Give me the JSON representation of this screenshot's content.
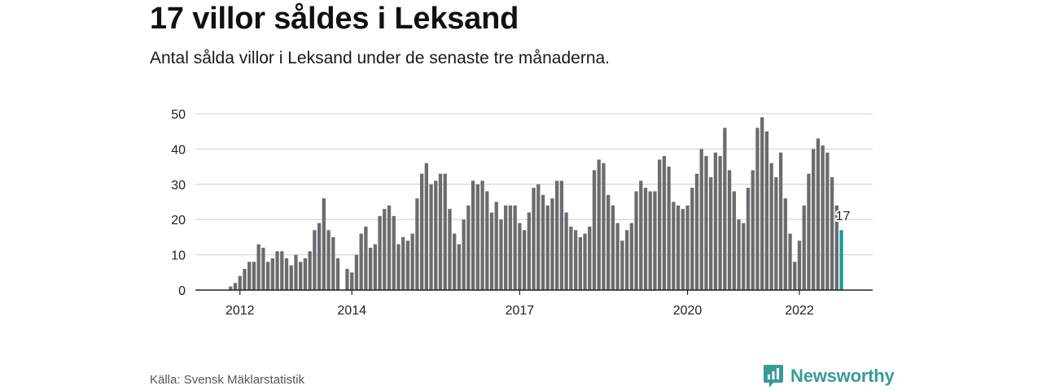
{
  "header": {
    "title": "17 villor såldes i Leksand",
    "subtitle": "Antal sålda villor i Leksand under de senaste tre månaderna."
  },
  "footer": {
    "source": "Källa: Svensk Mäklarstatistik",
    "brand": "Newsworthy",
    "brand_icon": "newsworthy-logo-icon"
  },
  "colors": {
    "bar": "#6b6b70",
    "highlight": "#1b9a9a",
    "grid": "#d9d9d9",
    "axis": "#222222",
    "brand": "#3a9a96"
  },
  "chart_data": {
    "type": "bar",
    "title": "17 villor såldes i Leksand",
    "subtitle": "Antal sålda villor i Leksand under de senaste tre månaderna.",
    "xlabel": "",
    "ylabel": "",
    "ylim": [
      0,
      50
    ],
    "yticks": [
      0,
      10,
      20,
      30,
      40,
      50
    ],
    "grid": true,
    "legend": "none",
    "x_start": "2011-11",
    "xtick_labels": [
      {
        "label": "2012",
        "date": "2012-01"
      },
      {
        "label": "2014",
        "date": "2014-01"
      },
      {
        "label": "2017",
        "date": "2017-01"
      },
      {
        "label": "2020",
        "date": "2020-01"
      },
      {
        "label": "2022",
        "date": "2022-01"
      }
    ],
    "values": [
      1,
      2,
      4,
      6,
      8,
      8,
      13,
      12,
      8,
      9,
      11,
      11,
      9,
      7,
      10,
      8,
      9,
      11,
      17,
      19,
      26,
      17,
      15,
      9,
      null,
      6,
      5,
      10,
      16,
      18,
      12,
      13,
      21,
      23,
      24,
      21,
      13,
      15,
      14,
      16,
      26,
      33,
      36,
      30,
      31,
      33,
      33,
      23,
      16,
      13,
      20,
      24,
      31,
      30,
      31,
      28,
      22,
      25,
      20,
      24,
      24,
      24,
      19,
      17,
      22,
      29,
      30,
      27,
      24,
      26,
      31,
      31,
      22,
      18,
      17,
      15,
      16,
      18,
      34,
      37,
      36,
      27,
      24,
      19,
      14,
      17,
      19,
      28,
      31,
      29,
      28,
      28,
      37,
      38,
      35,
      25,
      24,
      23,
      24,
      29,
      33,
      40,
      38,
      32,
      39,
      38,
      46,
      34,
      28,
      20,
      19,
      29,
      34,
      46,
      49,
      45,
      36,
      32,
      39,
      26,
      16,
      8,
      14,
      24,
      33,
      40,
      43,
      41,
      39,
      32,
      24,
      17
    ],
    "highlight_last": true,
    "annotation": {
      "label": "17",
      "value": 17
    }
  }
}
